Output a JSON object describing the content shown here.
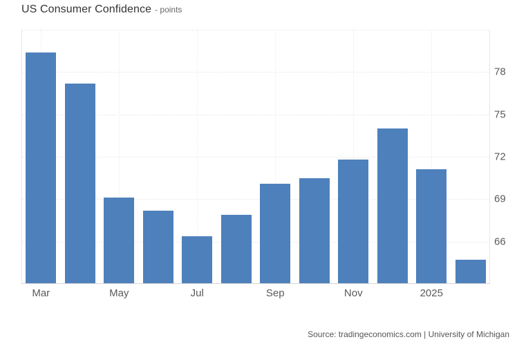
{
  "header": {
    "title": "US Consumer Confidence",
    "subtitle_display": "- points"
  },
  "footer": {
    "source": "Source: tradingeconomics.com | University of Michigan"
  },
  "colors": {
    "bar": "#4e80bc",
    "grid": "#e7e7e7",
    "axis_line": "#d4d4d4",
    "title_text": "#333333",
    "axis_text": "#595959",
    "source_text": "#555555",
    "background": "#ffffff"
  },
  "chart_data": {
    "type": "bar",
    "title": "US Consumer Confidence",
    "unit_label": "points",
    "categories": [
      "Mar",
      "",
      "May",
      "",
      "Jul",
      "",
      "Sep",
      "",
      "Nov",
      "",
      "2025",
      ""
    ],
    "values": [
      79.4,
      77.2,
      69.1,
      68.2,
      66.4,
      67.9,
      70.1,
      70.5,
      71.8,
      74.0,
      71.1,
      64.7
    ],
    "x_tick_labels": [
      "Mar",
      "May",
      "Jul",
      "Sep",
      "Nov",
      "2025"
    ],
    "y_ticks": [
      66,
      69,
      72,
      75,
      78
    ],
    "ylim": [
      63,
      81
    ],
    "y_axis_side": "right",
    "grid_style": "dotted",
    "legend": "none",
    "source": "Source: tradingeconomics.com | University of Michigan"
  }
}
